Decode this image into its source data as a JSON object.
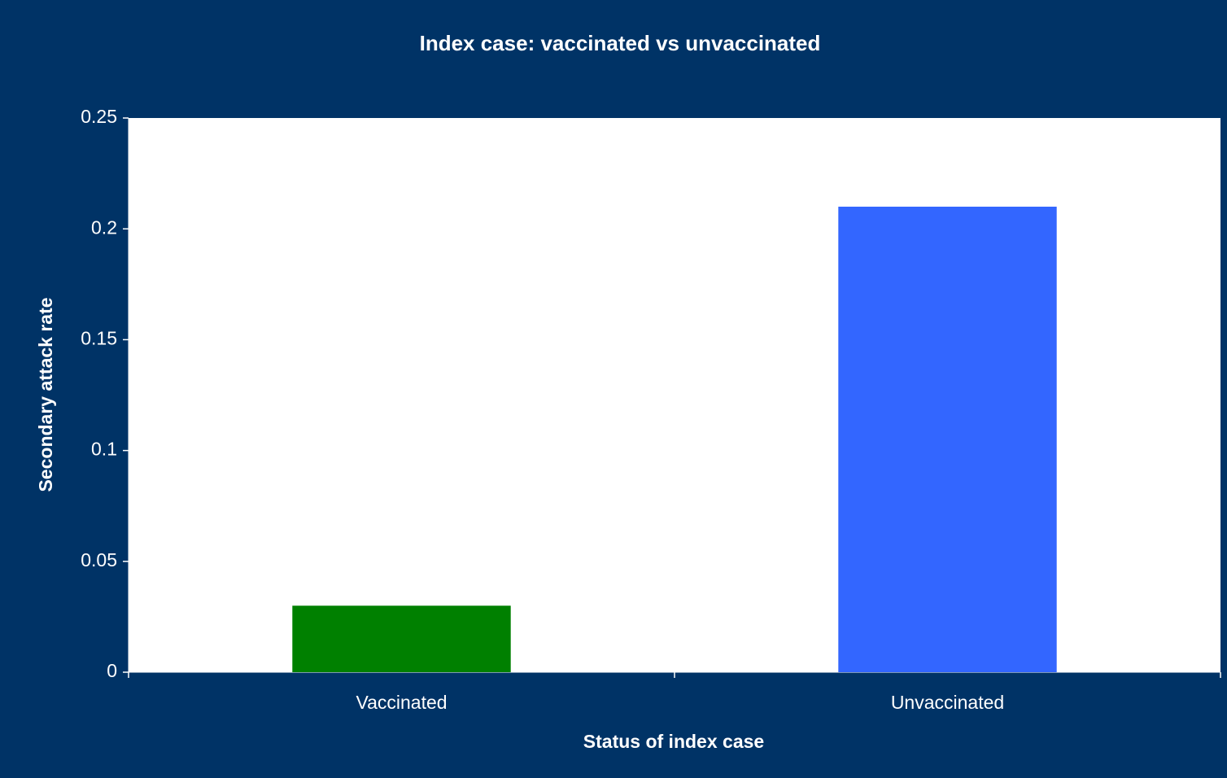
{
  "chart_data": {
    "type": "bar",
    "title": "Index case: vaccinated vs unvaccinated",
    "x_label": "Status of index case",
    "y_label": "Secondary attack rate",
    "categories": [
      "Vaccinated",
      "Unvaccinated"
    ],
    "values": [
      0.03,
      0.21
    ],
    "colors": [
      "#008000",
      "#3366ff"
    ],
    "ylim": [
      0,
      0.25
    ],
    "yticks": [
      0,
      0.05,
      0.1,
      0.15,
      0.2,
      0.25
    ],
    "grid": false
  }
}
